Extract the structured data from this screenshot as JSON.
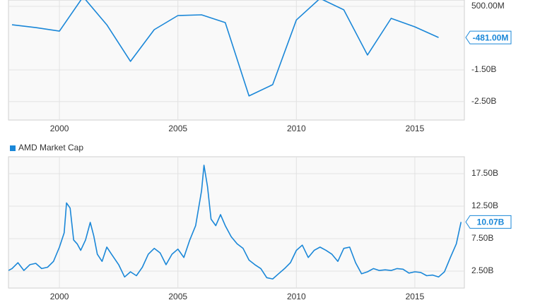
{
  "chart_data": [
    {
      "type": "line",
      "x": [
        1998,
        1999,
        2000,
        2001,
        2002,
        2003,
        2004,
        2005,
        2006,
        2007,
        2008,
        2009,
        2010,
        2011,
        2012,
        2013,
        2014,
        2015,
        2016
      ],
      "values": [
        -80,
        -170,
        -280,
        800,
        -80,
        -1233,
        -233,
        211,
        233,
        -11,
        -2322,
        -1967,
        70,
        750,
        390,
        -1033,
        122,
        -144,
        -481
      ],
      "value_labels": [
        null,
        null,
        null,
        null,
        null,
        null,
        null,
        null,
        null,
        null,
        null,
        null,
        null,
        null,
        null,
        null,
        null,
        null,
        "-481.00M"
      ],
      "color": "#1a87d8",
      "xlim": [
        1997.85,
        2017.09
      ],
      "ylim": [
        -3080,
        700
      ],
      "xticks": [
        2000,
        2005,
        2010,
        2015
      ],
      "yticks": [
        {
          "value": 500,
          "label": "500.00M"
        },
        {
          "value": -1500,
          "label": "-1.50B"
        },
        {
          "value": -2500,
          "label": "-2.50B"
        }
      ],
      "grid": true
    },
    {
      "type": "line",
      "x": [
        1997.85,
        1998.0,
        1998.25,
        1998.5,
        1998.75,
        1999.0,
        1999.25,
        1999.5,
        1999.75,
        2000.0,
        2000.2,
        2000.3,
        2000.45,
        2000.6,
        2000.75,
        2000.9,
        2001.1,
        2001.3,
        2001.45,
        2001.6,
        2001.8,
        2002.0,
        2002.2,
        2002.5,
        2002.75,
        2003.0,
        2003.25,
        2003.5,
        2003.75,
        2004.0,
        2004.25,
        2004.5,
        2004.75,
        2005.0,
        2005.25,
        2005.5,
        2005.75,
        2006.0,
        2006.1,
        2006.25,
        2006.4,
        2006.6,
        2006.8,
        2007.0,
        2007.25,
        2007.5,
        2007.75,
        2008.0,
        2008.25,
        2008.5,
        2008.75,
        2009.0,
        2009.25,
        2009.5,
        2009.75,
        2010.0,
        2010.25,
        2010.5,
        2010.75,
        2011.0,
        2011.25,
        2011.5,
        2011.75,
        2012.0,
        2012.25,
        2012.5,
        2012.75,
        2013.0,
        2013.25,
        2013.5,
        2013.75,
        2014.0,
        2014.25,
        2014.5,
        2014.75,
        2015.0,
        2015.25,
        2015.5,
        2015.75,
        2016.0,
        2016.25,
        2016.5,
        2016.75,
        2016.95
      ],
      "series": [
        {
          "name": "AMD Market Cap",
          "color": "#1a87d8",
          "values": [
            2.6,
            2.9,
            3.8,
            2.6,
            3.5,
            3.7,
            2.9,
            3.1,
            4.0,
            6.2,
            8.4,
            13.0,
            12.2,
            7.3,
            6.7,
            5.7,
            7.3,
            10.0,
            7.9,
            5.1,
            4.0,
            6.2,
            5.1,
            3.5,
            1.6,
            2.4,
            1.8,
            3.1,
            5.1,
            6.0,
            5.3,
            3.5,
            5.1,
            5.9,
            4.6,
            7.3,
            9.5,
            14.9,
            18.8,
            15.5,
            10.5,
            9.5,
            11.2,
            9.5,
            7.8,
            6.7,
            6.0,
            4.2,
            3.5,
            2.9,
            1.5,
            1.3,
            2.1,
            2.9,
            3.8,
            5.7,
            6.5,
            4.6,
            5.7,
            6.2,
            5.7,
            5.1,
            4.0,
            6.0,
            6.2,
            3.8,
            2.1,
            2.4,
            2.9,
            2.6,
            2.7,
            2.6,
            2.9,
            2.8,
            2.2,
            2.4,
            2.3,
            1.8,
            1.9,
            1.6,
            2.4,
            4.6,
            6.7,
            10.07
          ],
          "value_labels": [
            null,
            null,
            null,
            null,
            null,
            null,
            null,
            null,
            null,
            null,
            null,
            null,
            null,
            null,
            null,
            null,
            null,
            null,
            null,
            null,
            null,
            null,
            null,
            null,
            null,
            null,
            null,
            null,
            null,
            null,
            null,
            null,
            null,
            null,
            null,
            null,
            null,
            null,
            null,
            null,
            null,
            null,
            null,
            null,
            null,
            null,
            null,
            null,
            null,
            null,
            null,
            null,
            null,
            null,
            null,
            null,
            null,
            null,
            null,
            null,
            null,
            null,
            null,
            null,
            null,
            null,
            null,
            null,
            null,
            null,
            null,
            null,
            null,
            null,
            null,
            null,
            null,
            null,
            null,
            null,
            null,
            null,
            null,
            "10.07B"
          ]
        }
      ],
      "xlim": [
        1997.85,
        2017.09
      ],
      "ylim": [
        -0.1,
        20.1
      ],
      "xticks": [
        2000,
        2005,
        2010,
        2015
      ],
      "yticks": [
        {
          "value": 17.5,
          "label": "17.50B"
        },
        {
          "value": 12.5,
          "label": "12.50B"
        },
        {
          "value": 7.5,
          "label": "7.50B"
        },
        {
          "value": 2.5,
          "label": "2.50B"
        }
      ],
      "grid": true,
      "legend": "top-left"
    }
  ]
}
